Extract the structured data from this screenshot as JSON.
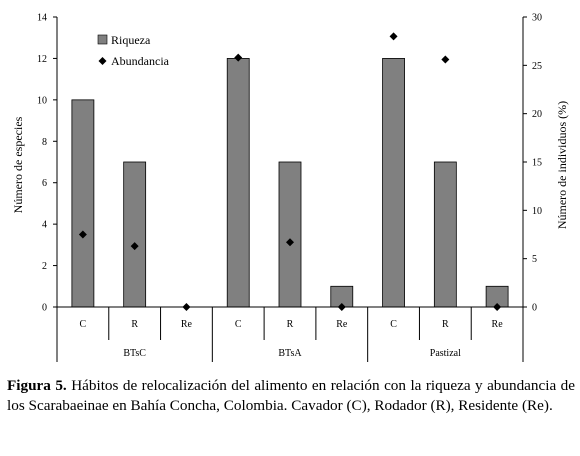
{
  "chart_data": {
    "type": "bar",
    "groups": [
      "BTsC",
      "BTsA",
      "Pastizal"
    ],
    "categories": [
      "C",
      "R",
      "Re",
      "C",
      "R",
      "Re",
      "C",
      "R",
      "Re"
    ],
    "series": [
      {
        "name": "Riqueza",
        "axis": "left",
        "kind": "bar",
        "color": "#808080",
        "values": [
          10,
          7,
          0,
          12,
          7,
          1,
          12,
          7,
          1
        ]
      },
      {
        "name": "Abundancia",
        "axis": "right",
        "kind": "marker",
        "marker": "diamond",
        "color": "#000000",
        "values": [
          7.5,
          6.3,
          0,
          25.8,
          6.7,
          0,
          28,
          25.6,
          0
        ]
      }
    ],
    "ylabel": "Número de especies",
    "ylabel_right": "Número de individuos (%)",
    "ylim": [
      0,
      14
    ],
    "yticks": [
      0,
      2,
      4,
      6,
      8,
      10,
      12,
      14
    ],
    "ylim_right": [
      0,
      30
    ],
    "yticks_right": [
      0,
      5,
      10,
      15,
      20,
      25,
      30
    ],
    "grid": false,
    "legend_position": "top-left"
  },
  "caption": {
    "label": "Figura 5.",
    "text": " Hábitos de relocalización del alimento en relación con la riqueza y abundancia de los Scarabaeinae en Bahía Concha, Colombia. Cavador (C), Rodador (R), Residente (Re)."
  }
}
